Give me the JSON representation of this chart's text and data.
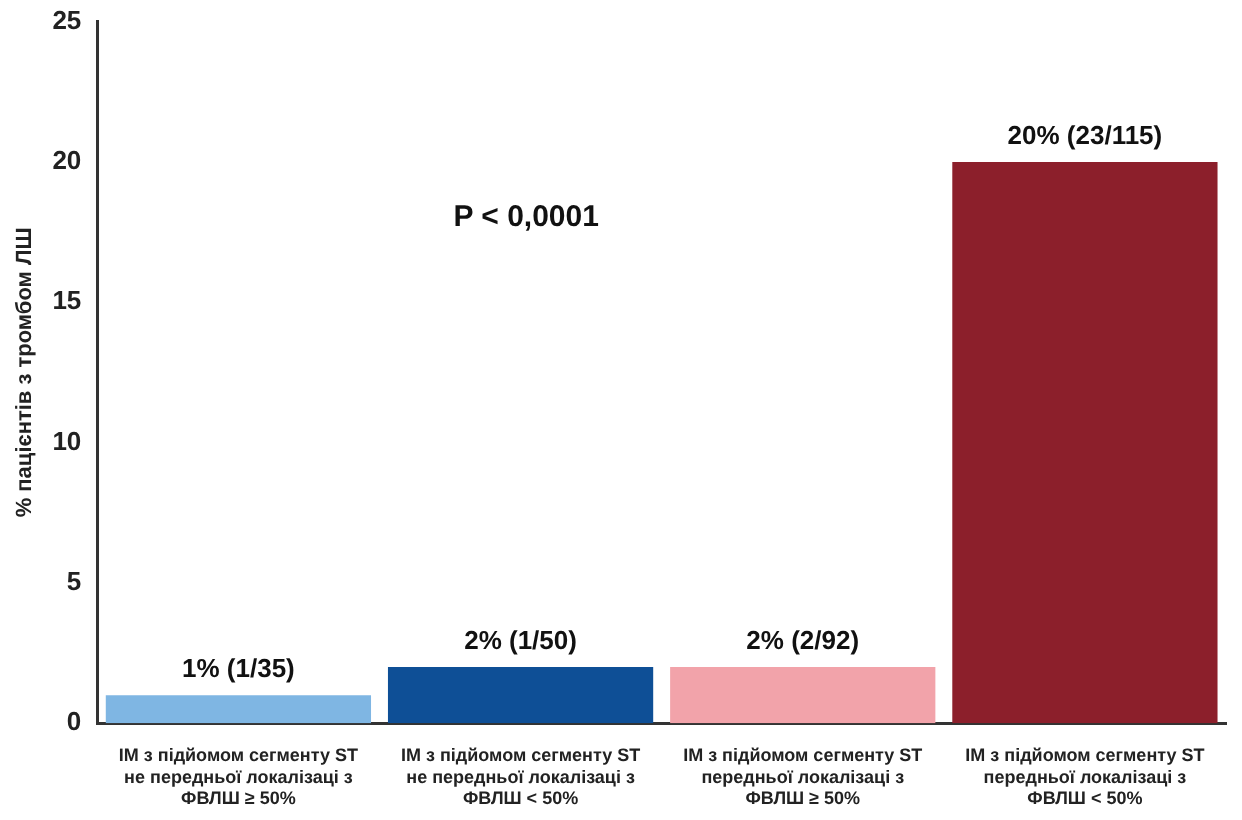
{
  "chart_data": {
    "type": "bar",
    "categories": [
      "ІМ з підйомом сегменту ST не передньої локалізаці з ФВЛШ ≥ 50%",
      "ІМ з підйомом сегменту ST не передньої локалізаці з ФВЛШ < 50%",
      "ІМ з підйомом сегменту ST передньої локалізаці з ФВЛШ ≥ 50%",
      "ІМ з підйомом сегменту ST передньої локалізаці з ФВЛШ < 50%"
    ],
    "values": [
      1,
      2,
      2,
      20
    ],
    "value_labels": [
      "1% (1/35)",
      "2% (1/50)",
      "2% (2/92)",
      "20% (23/115)"
    ],
    "colors": [
      "#7fb6e3",
      "#0e4f96",
      "#f2a3aa",
      "#8c1f2b"
    ],
    "ylabel": "% пацієнтів з тромбом ЛШ",
    "ylim": [
      0,
      25
    ],
    "yticks": [
      0,
      5,
      10,
      15,
      20,
      25
    ],
    "grid": false,
    "legend": false,
    "annotations": [
      "P < 0,0001"
    ]
  }
}
